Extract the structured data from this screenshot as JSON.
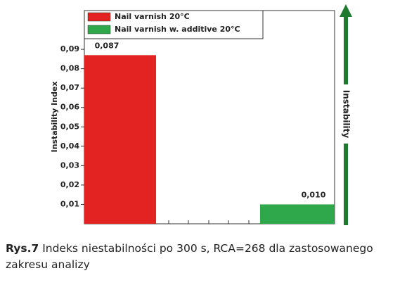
{
  "chart_data": {
    "type": "bar",
    "y_label": "Instability Index",
    "arrow_label": "Instability",
    "series": [
      {
        "name": "Nail varnish 20°C",
        "color": "#e32322",
        "values": [
          0.087
        ],
        "value_labels": [
          "0,087"
        ]
      },
      {
        "name": "Nail varnish w. additive 20°C",
        "color": "#2ea84a",
        "values": [
          0.01
        ],
        "value_labels": [
          "0,010"
        ]
      }
    ],
    "ylim": [
      0,
      0.11
    ],
    "yticks": [
      {
        "value": 0.01,
        "label": "0,01"
      },
      {
        "value": 0.02,
        "label": "0,02"
      },
      {
        "value": 0.03,
        "label": "0,03"
      },
      {
        "value": 0.04,
        "label": "0,04"
      },
      {
        "value": 0.05,
        "label": "0,05"
      },
      {
        "value": 0.06,
        "label": "0,06"
      },
      {
        "value": 0.07,
        "label": "0,07"
      },
      {
        "value": 0.08,
        "label": "0,08"
      },
      {
        "value": 0.09,
        "label": "0,09"
      }
    ],
    "caption_label": "Rys.7",
    "caption_text": "Indeks niestabilności po 300 s, RCA=268 dla zastosowanego zakresu analizy"
  }
}
